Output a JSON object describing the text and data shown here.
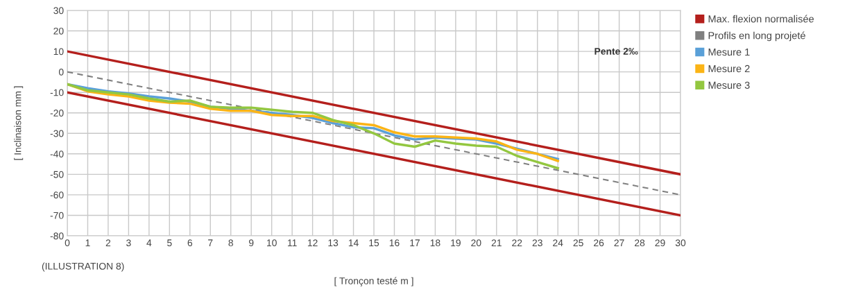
{
  "chart_data": {
    "type": "line",
    "xlabel": "[ Tronçon testé m ]",
    "ylabel": "[ Inclinaison mm ]",
    "annotations": [
      "Pente 2‰",
      "(ILLUSTRATION 8)"
    ],
    "xlim": [
      0,
      30
    ],
    "xticks": [
      0,
      1,
      2,
      3,
      4,
      5,
      6,
      7,
      8,
      9,
      10,
      11,
      12,
      13,
      14,
      15,
      16,
      17,
      18,
      19,
      20,
      21,
      22,
      23,
      24,
      25,
      26,
      27,
      28,
      29,
      30
    ],
    "ylim": [
      -80,
      30
    ],
    "yticks": [
      -80,
      -70,
      -60,
      -50,
      -40,
      -30,
      -20,
      -10,
      0,
      10,
      20,
      30
    ],
    "grid": true,
    "legend": "top right",
    "marker": "none",
    "series": [
      {
        "name": "Max. flexion normalisée",
        "color": "#b41f1c",
        "x": [
          0,
          30
        ],
        "values": [
          10,
          -50
        ],
        "line_style": "solid"
      },
      {
        "color": "#b41f1c",
        "x": [
          0,
          30
        ],
        "values": [
          -10,
          -70
        ],
        "line_style": "solid"
      },
      {
        "name": "Profils en long projeté",
        "color": "#808080",
        "x": [
          0,
          30
        ],
        "values": [
          0,
          -60
        ],
        "line_style": "dashed"
      },
      {
        "name": "Mesure 1",
        "color": "#5aa0d8",
        "x": [
          0,
          1,
          2,
          3,
          4,
          5,
          6,
          7,
          8,
          9,
          10,
          11,
          12,
          13,
          14,
          15,
          16,
          17,
          18,
          19,
          20,
          21,
          22,
          23,
          24
        ],
        "values": [
          -6,
          -8,
          -9.5,
          -10.5,
          -12,
          -13,
          -14.5,
          -17,
          -18,
          -19,
          -20,
          -21,
          -22.5,
          -25,
          -27,
          -27.5,
          -31,
          -33,
          -32,
          -32.5,
          -33,
          -35,
          -37.5,
          -40,
          -42.5
        ],
        "line_style": "solid"
      },
      {
        "name": "Mesure 2",
        "color": "#fbb416",
        "x": [
          0,
          1,
          2,
          3,
          4,
          5,
          6,
          7,
          8,
          9,
          10,
          11,
          12,
          13,
          14,
          15,
          16,
          17,
          18,
          19,
          20,
          21,
          22,
          23,
          24
        ],
        "values": [
          -6,
          -9.5,
          -11,
          -12,
          -14,
          -15,
          -15.5,
          -18,
          -19,
          -19,
          -21,
          -21.5,
          -21.5,
          -24,
          -25,
          -26,
          -29.5,
          -31.5,
          -31.5,
          -32,
          -32.5,
          -34,
          -38,
          -40,
          -43.5
        ],
        "line_style": "solid"
      },
      {
        "name": "Mesure 3",
        "color": "#93c740",
        "x": [
          0,
          1,
          2,
          3,
          4,
          5,
          6,
          7,
          8,
          9,
          10,
          11,
          12,
          13,
          14,
          15,
          16,
          17,
          18,
          19,
          20,
          21,
          22,
          23,
          24
        ],
        "values": [
          -6,
          -9,
          -10,
          -11,
          -13,
          -14.5,
          -14,
          -17,
          -17.5,
          -17.5,
          -18.5,
          -19.5,
          -20,
          -23.5,
          -26,
          -30,
          -35,
          -36.5,
          -33.5,
          -35,
          -36,
          -36.5,
          -41,
          -44,
          -47
        ],
        "line_style": "solid"
      }
    ]
  }
}
